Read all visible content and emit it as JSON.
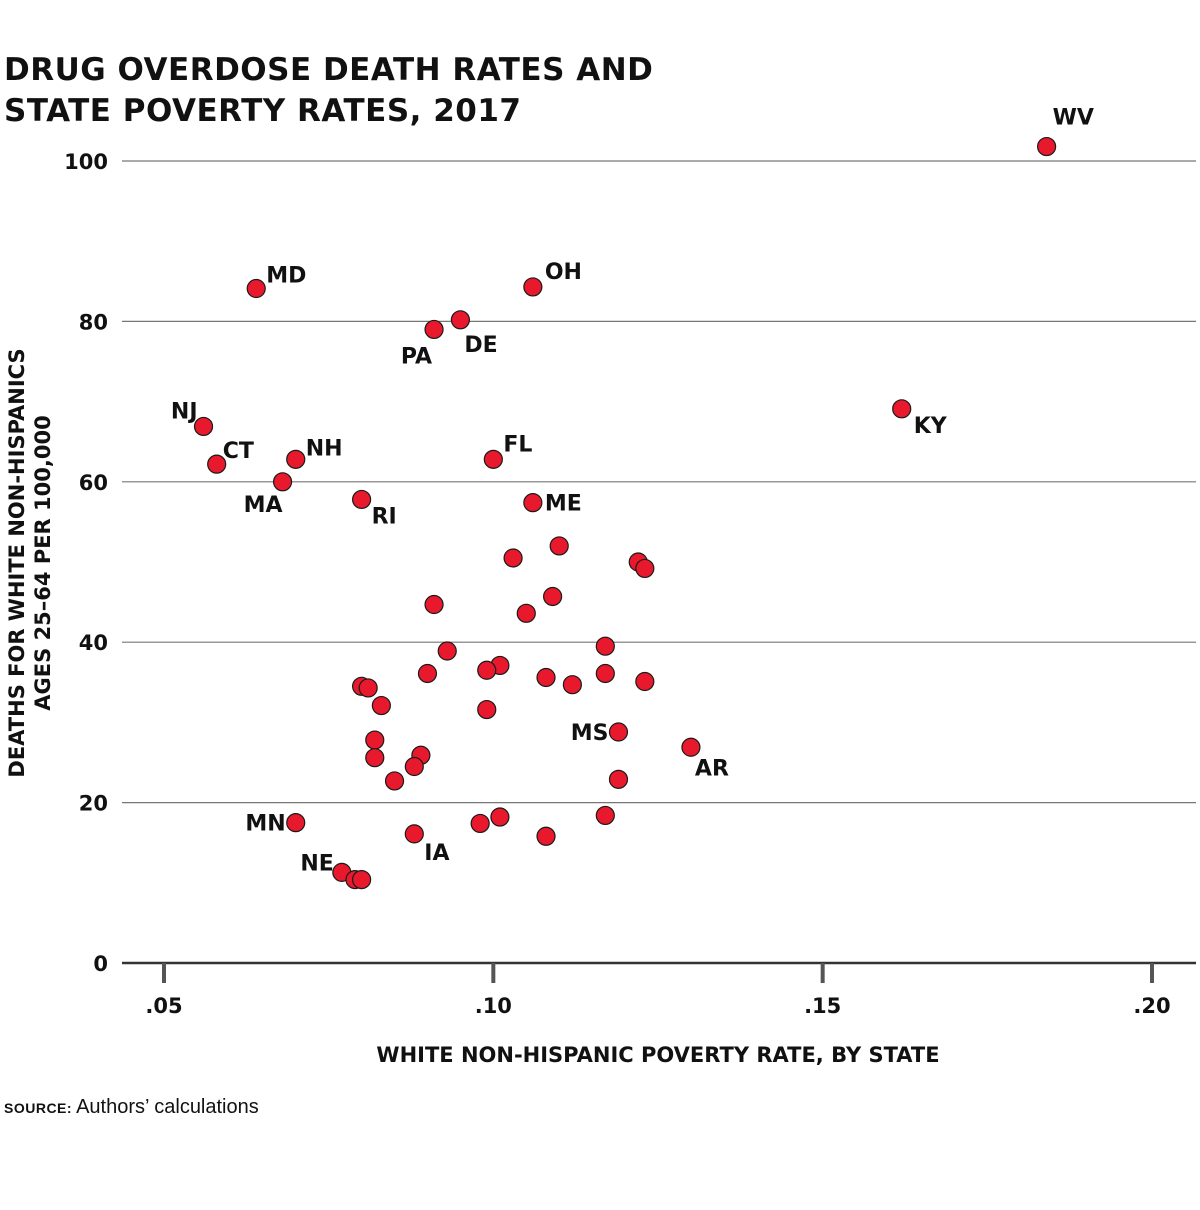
{
  "chart_data": {
    "type": "scatter",
    "title_lines": [
      "DRUG OVERDOSE DEATH RATES AND",
      "STATE POVERTY RATES, 2017"
    ],
    "xlabel": "WHITE NON-HISPANIC POVERTY RATE, BY STATE",
    "ylabel_lines": [
      "DEATHS FOR WHITE NON-HISPANICS",
      "AGES 25–64 PER 100,000"
    ],
    "xlim": [
      0.044,
      0.207
    ],
    "ylim": [
      0,
      100
    ],
    "x_ticks": [
      0.05,
      0.1,
      0.15,
      0.2
    ],
    "x_tick_labels": [
      ".05",
      ".10",
      ".15",
      ".20"
    ],
    "y_ticks": [
      0,
      20,
      40,
      60,
      80,
      100
    ],
    "y_tick_labels": [
      "0",
      "20",
      "40",
      "60",
      "80",
      "100"
    ],
    "grid": "horizontal",
    "marker_color": "#e8192c",
    "points": [
      {
        "x": 0.184,
        "y": 101.8,
        "label": "WV"
      },
      {
        "x": 0.064,
        "y": 84.1,
        "label": "MD"
      },
      {
        "x": 0.106,
        "y": 84.3,
        "label": "OH"
      },
      {
        "x": 0.091,
        "y": 79.0,
        "label": "PA"
      },
      {
        "x": 0.095,
        "y": 80.2,
        "label": "DE"
      },
      {
        "x": 0.056,
        "y": 66.9,
        "label": "NJ"
      },
      {
        "x": 0.058,
        "y": 62.2,
        "label": "CT"
      },
      {
        "x": 0.07,
        "y": 62.8,
        "label": "NH"
      },
      {
        "x": 0.068,
        "y": 60.0,
        "label": "MA"
      },
      {
        "x": 0.08,
        "y": 57.8,
        "label": "RI"
      },
      {
        "x": 0.1,
        "y": 62.8,
        "label": "FL"
      },
      {
        "x": 0.106,
        "y": 57.4,
        "label": "ME"
      },
      {
        "x": 0.162,
        "y": 69.1,
        "label": "KY"
      },
      {
        "x": 0.119,
        "y": 28.8,
        "label": "MS"
      },
      {
        "x": 0.13,
        "y": 26.9,
        "label": "AR"
      },
      {
        "x": 0.07,
        "y": 17.5,
        "label": "MN"
      },
      {
        "x": 0.077,
        "y": 11.3,
        "label": "NE"
      },
      {
        "x": 0.088,
        "y": 16.1,
        "label": "IA"
      },
      {
        "x": 0.11,
        "y": 52.0,
        "label": ""
      },
      {
        "x": 0.103,
        "y": 50.5,
        "label": ""
      },
      {
        "x": 0.122,
        "y": 50.0,
        "label": ""
      },
      {
        "x": 0.123,
        "y": 49.2,
        "label": ""
      },
      {
        "x": 0.109,
        "y": 45.7,
        "label": ""
      },
      {
        "x": 0.091,
        "y": 44.7,
        "label": ""
      },
      {
        "x": 0.105,
        "y": 43.6,
        "label": ""
      },
      {
        "x": 0.117,
        "y": 39.5,
        "label": ""
      },
      {
        "x": 0.093,
        "y": 38.9,
        "label": ""
      },
      {
        "x": 0.101,
        "y": 37.1,
        "label": ""
      },
      {
        "x": 0.099,
        "y": 36.5,
        "label": ""
      },
      {
        "x": 0.09,
        "y": 36.1,
        "label": ""
      },
      {
        "x": 0.117,
        "y": 36.1,
        "label": ""
      },
      {
        "x": 0.108,
        "y": 35.6,
        "label": ""
      },
      {
        "x": 0.123,
        "y": 35.1,
        "label": ""
      },
      {
        "x": 0.112,
        "y": 34.7,
        "label": ""
      },
      {
        "x": 0.08,
        "y": 34.5,
        "label": ""
      },
      {
        "x": 0.081,
        "y": 34.3,
        "label": ""
      },
      {
        "x": 0.083,
        "y": 32.1,
        "label": ""
      },
      {
        "x": 0.099,
        "y": 31.6,
        "label": ""
      },
      {
        "x": 0.082,
        "y": 27.8,
        "label": ""
      },
      {
        "x": 0.089,
        "y": 25.9,
        "label": ""
      },
      {
        "x": 0.082,
        "y": 25.6,
        "label": ""
      },
      {
        "x": 0.088,
        "y": 24.5,
        "label": ""
      },
      {
        "x": 0.085,
        "y": 22.7,
        "label": ""
      },
      {
        "x": 0.119,
        "y": 22.9,
        "label": ""
      },
      {
        "x": 0.117,
        "y": 18.4,
        "label": ""
      },
      {
        "x": 0.101,
        "y": 18.2,
        "label": ""
      },
      {
        "x": 0.098,
        "y": 17.4,
        "label": ""
      },
      {
        "x": 0.108,
        "y": 15.8,
        "label": ""
      },
      {
        "x": 0.079,
        "y": 10.4,
        "label": ""
      },
      {
        "x": 0.08,
        "y": 10.4,
        "label": ""
      }
    ]
  },
  "source": {
    "label": "SOURCE:",
    "text": "Authors’ calculations"
  }
}
